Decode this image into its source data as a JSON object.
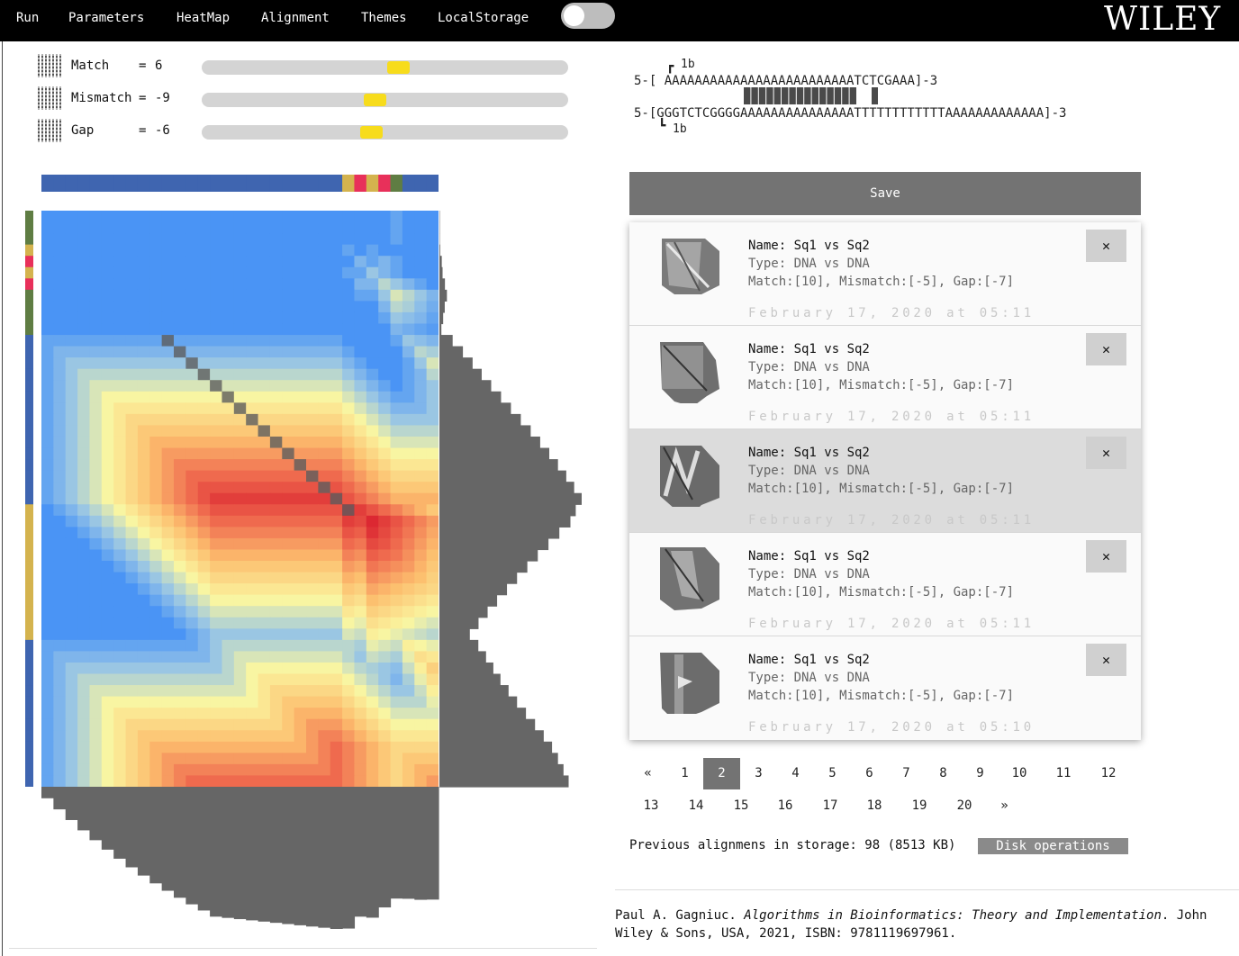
{
  "nav": {
    "items": [
      "Run",
      "Parameters",
      "HeatMap",
      "Alignment",
      "Themes",
      "LocalStorage"
    ],
    "logo": "WILEY"
  },
  "parameters": [
    {
      "label": "Match",
      "eq": "=",
      "value": "6",
      "level": 0.54
    },
    {
      "label": "Mismatch",
      "eq": "=",
      "value": "-9",
      "level": 0.47
    },
    {
      "label": "Gap",
      "eq": "=",
      "value": "-6",
      "level": 0.46
    }
  ],
  "colors": {
    "A": "#3f65b0",
    "C": "#e8305a",
    "G": "#5f7d43",
    "T": "#d4b34e",
    "path": "#5e5e5e",
    "histogram": "#666666",
    "slider_thumb": "#f7dc1c"
  },
  "sequences": {
    "seq1": "AAAAAAAAAAAAAAAAAAAAAAAAATCTCGAAA",
    "seq2": "GGGTCTCGGGGAAAAAAAAAAAAAAATTTTTTTTTTTTAAAAAAAAAAAAA"
  },
  "alignment": {
    "line1_prefix": "5-[ ",
    "line1_seq": "AAAAAAAAAAAAAAAAAAAAAAAAATCTCGAAA",
    "line1_suffix": "]-3",
    "line2": "5-[GGGTCTCGGGGAAAAAAAAAAAAAAATTTTTTTTTTTTAAAAAAAAAAAAA]-3",
    "marker_top": "1b",
    "marker_bottom": "1b",
    "bracket_top": "┏",
    "bracket_bottom": "┗"
  },
  "save_label": "Save",
  "saved_alignments": [
    {
      "name": "Name: Sq1 vs Sq2",
      "type": "Type: DNA vs DNA",
      "params": "Match:[10], Mismatch:[-5], Gap:[-7]",
      "date": "February 17, 2020 at 05:11",
      "selected": false
    },
    {
      "name": "Name: Sq1 vs Sq2",
      "type": "Type: DNA vs DNA",
      "params": "Match:[10], Mismatch:[-5], Gap:[-7]",
      "date": "February 17, 2020 at 05:11",
      "selected": false
    },
    {
      "name": "Name: Sq1 vs Sq2",
      "type": "Type: DNA vs DNA",
      "params": "Match:[10], Mismatch:[-5], Gap:[-7]",
      "date": "February 17, 2020 at 05:11",
      "selected": true
    },
    {
      "name": "Name: Sq1 vs Sq2",
      "type": "Type: DNA vs DNA",
      "params": "Match:[10], Mismatch:[-5], Gap:[-7]",
      "date": "February 17, 2020 at 05:11",
      "selected": false
    },
    {
      "name": "Name: Sq1 vs Sq2",
      "type": "Type: DNA vs DNA",
      "params": "Match:[10], Mismatch:[-5], Gap:[-7]",
      "date": "February 17, 2020 at 05:10",
      "selected": false
    }
  ],
  "close_label": "✕",
  "pagination": {
    "prev": "«",
    "next": "»",
    "pages": [
      "1",
      "2",
      "3",
      "4",
      "5",
      "6",
      "7",
      "8",
      "9",
      "10",
      "11",
      "12",
      "13",
      "14",
      "15",
      "16",
      "17",
      "18",
      "19",
      "20"
    ],
    "active": "2"
  },
  "storage": {
    "text": "Previous alignmens in storage: 98 (8513 KB)",
    "disk_button": "Disk operations"
  },
  "citation": {
    "author": "Paul A. Gagniuc. ",
    "title": "Algorithms in Bioinformatics: Theory and Implementation",
    "rest": ". John Wiley & Sons, USA, 2021, ISBN: 9781119697961."
  }
}
